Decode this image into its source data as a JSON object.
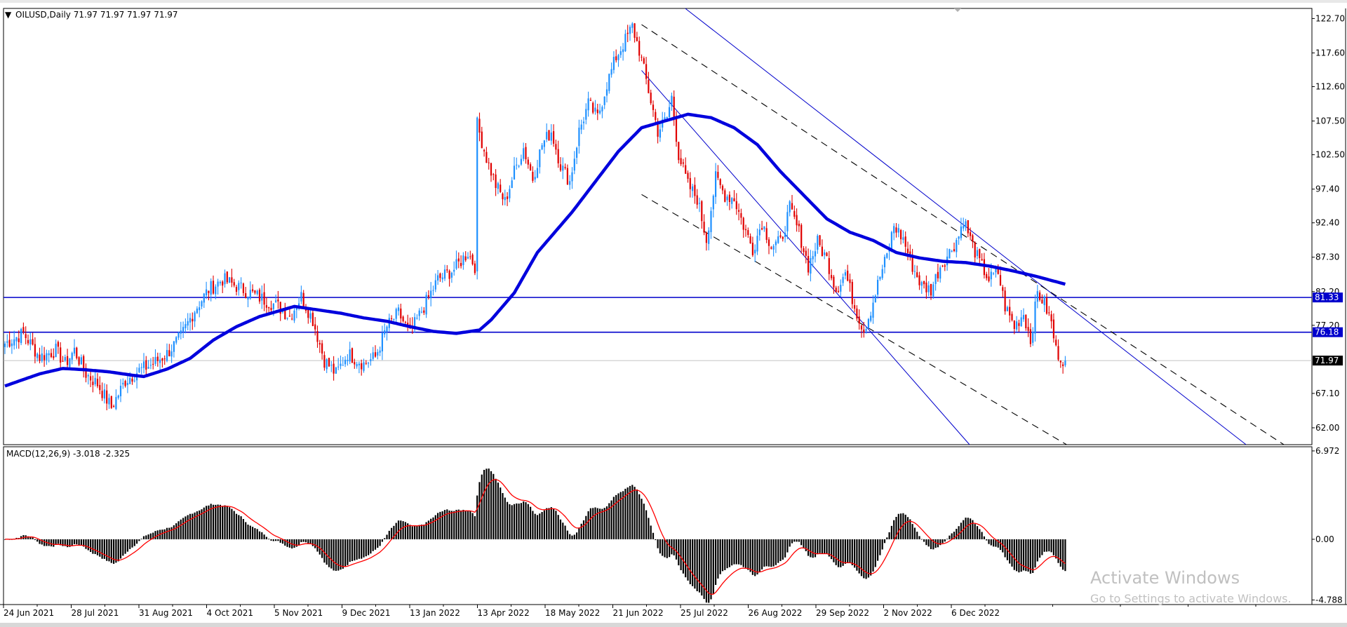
{
  "window": {
    "title": "OILUSD,Daily  71.97 71.97 71.97 71.97"
  },
  "watermark": {
    "line1": "Activate Windows",
    "line2": "Go to Settings to activate Windows."
  },
  "colors": {
    "bull": "#1e90ff",
    "bear": "#e00000",
    "ma": "#0000dd",
    "hline": "#0000cc",
    "trend": "#0000cc",
    "channel": "#000000",
    "macd_hist": "#000000",
    "macd_signal": "#ff0000",
    "current_tag": "#000000"
  },
  "chart_data": [
    {
      "type": "candlestick",
      "symbol": "OILUSD",
      "timeframe": "Daily",
      "ohlc_header": "71.97 71.97 71.97 71.97",
      "ylim": [
        59.5,
        124.2
      ],
      "y_ticks": [
        "122.70",
        "117.60",
        "112.60",
        "107.50",
        "102.50",
        "97.40",
        "92.40",
        "87.30",
        "82.20",
        "77.20",
        "67.10",
        "62.00"
      ],
      "x_date_labels": [
        "24 Jun 2021",
        "28 Jul 2021",
        "31 Aug 2021",
        "4 Oct 2021",
        "5 Nov 2021",
        "9 Dec 2021",
        "13 Jan 2022",
        "13 Apr 2022",
        "18 May 2022",
        "21 Jun 2022",
        "25 Jul 2022",
        "26 Aug 2022",
        "29 Sep 2022",
        "2 Nov 2022",
        "6 Dec 2022"
      ],
      "horizontal_lines": [
        {
          "label": "81.33",
          "value": 81.33
        },
        {
          "label": "76.18",
          "value": 76.18
        }
      ],
      "current_price": {
        "label": "71.97",
        "value": 71.97
      },
      "close_anchors": [
        [
          0,
          74.5
        ],
        [
          8,
          76.0
        ],
        [
          15,
          72.5
        ],
        [
          22,
          73.5
        ],
        [
          26,
          71.5
        ],
        [
          30,
          73.5
        ],
        [
          35,
          70.0
        ],
        [
          40,
          68.5
        ],
        [
          46,
          65.0
        ],
        [
          52,
          69.0
        ],
        [
          58,
          70.5
        ],
        [
          64,
          71.5
        ],
        [
          70,
          73.0
        ],
        [
          76,
          75.5
        ],
        [
          82,
          79.5
        ],
        [
          88,
          82.5
        ],
        [
          94,
          84.0
        ],
        [
          100,
          83.0
        ],
        [
          106,
          82.0
        ],
        [
          112,
          81.0
        ],
        [
          118,
          80.0
        ],
        [
          123,
          78.5
        ],
        [
          128,
          81.5
        ],
        [
          133,
          78.0
        ],
        [
          138,
          72.0
        ],
        [
          143,
          70.0
        ],
        [
          148,
          73.0
        ],
        [
          155,
          71.5
        ],
        [
          160,
          72.5
        ],
        [
          165,
          77.0
        ],
        [
          170,
          79.0
        ],
        [
          175,
          76.0
        ],
        [
          181,
          80.0
        ],
        [
          187,
          84.0
        ],
        [
          194,
          85.5
        ],
        [
          200,
          88.0
        ],
        [
          203,
          86.0
        ],
        [
          204,
          107.0
        ],
        [
          208,
          102.0
        ],
        [
          212,
          98.0
        ],
        [
          216,
          95.5
        ],
        [
          220,
          100.0
        ],
        [
          224,
          103.5
        ],
        [
          228,
          99.0
        ],
        [
          232,
          104.0
        ],
        [
          236,
          106.0
        ],
        [
          240,
          101.0
        ],
        [
          244,
          98.5
        ],
        [
          248,
          106.0
        ],
        [
          252,
          110.0
        ],
        [
          256,
          108.0
        ],
        [
          260,
          113.0
        ],
        [
          264,
          117.0
        ],
        [
          268,
          119.5
        ],
        [
          271,
          121.5
        ],
        [
          274,
          118.0
        ],
        [
          278,
          112.0
        ],
        [
          282,
          106.0
        ],
        [
          286,
          108.0
        ],
        [
          288,
          111.0
        ],
        [
          291,
          102.5
        ],
        [
          295,
          98.0
        ],
        [
          299,
          96.0
        ],
        [
          303,
          90.0
        ],
        [
          307,
          99.0
        ],
        [
          311,
          96.5
        ],
        [
          315,
          96.0
        ],
        [
          319,
          92.0
        ],
        [
          323,
          88.5
        ],
        [
          327,
          92.5
        ],
        [
          331,
          89.0
        ],
        [
          335,
          89.5
        ],
        [
          339,
          94.5
        ],
        [
          343,
          91.0
        ],
        [
          347,
          86.0
        ],
        [
          351,
          89.5
        ],
        [
          355,
          87.0
        ],
        [
          359,
          82.5
        ],
        [
          363,
          85.0
        ],
        [
          367,
          80.0
        ],
        [
          371,
          76.5
        ],
        [
          374,
          79.5
        ],
        [
          378,
          84.5
        ],
        [
          381,
          87.5
        ],
        [
          384,
          92.0
        ],
        [
          388,
          90.0
        ],
        [
          392,
          86.0
        ],
        [
          396,
          83.0
        ],
        [
          400,
          82.5
        ],
        [
          404,
          86.0
        ],
        [
          408,
          88.0
        ],
        [
          412,
          90.5
        ],
        [
          414,
          93.0
        ],
        [
          418,
          89.0
        ],
        [
          421,
          86.5
        ],
        [
          425,
          84.0
        ],
        [
          429,
          85.0
        ],
        [
          432,
          80.0
        ],
        [
          436,
          77.0
        ],
        [
          440,
          79.0
        ],
        [
          443,
          75.0
        ],
        [
          446,
          82.0
        ],
        [
          449,
          80.5
        ],
        [
          452,
          77.5
        ],
        [
          454,
          73.5
        ],
        [
          456,
          72.5
        ],
        [
          458,
          71.97
        ]
      ],
      "moving_average_anchors": [
        [
          0,
          68.2
        ],
        [
          15,
          70.0
        ],
        [
          25,
          70.8
        ],
        [
          35,
          70.6
        ],
        [
          45,
          70.3
        ],
        [
          55,
          69.8
        ],
        [
          60,
          69.6
        ],
        [
          70,
          70.7
        ],
        [
          80,
          72.3
        ],
        [
          90,
          75.0
        ],
        [
          100,
          77.0
        ],
        [
          110,
          78.5
        ],
        [
          120,
          79.5
        ],
        [
          125,
          80.0
        ],
        [
          135,
          79.5
        ],
        [
          145,
          79.0
        ],
        [
          155,
          78.3
        ],
        [
          165,
          77.8
        ],
        [
          175,
          77.0
        ],
        [
          185,
          76.3
        ],
        [
          195,
          76.0
        ],
        [
          205,
          76.5
        ],
        [
          210,
          78.0
        ],
        [
          220,
          82.0
        ],
        [
          230,
          88.0
        ],
        [
          245,
          94.0
        ],
        [
          255,
          98.5
        ],
        [
          265,
          103.0
        ],
        [
          275,
          106.5
        ],
        [
          285,
          107.5
        ],
        [
          295,
          108.5
        ],
        [
          305,
          108.0
        ],
        [
          315,
          106.5
        ],
        [
          325,
          104.0
        ],
        [
          335,
          100.0
        ],
        [
          345,
          96.5
        ],
        [
          355,
          93.0
        ],
        [
          365,
          91.0
        ],
        [
          375,
          89.8
        ],
        [
          385,
          88.0
        ],
        [
          395,
          87.2
        ],
        [
          405,
          86.7
        ],
        [
          415,
          86.5
        ],
        [
          425,
          86.0
        ],
        [
          435,
          85.3
        ],
        [
          445,
          84.5
        ],
        [
          458,
          83.3
        ]
      ],
      "trendlines": [
        {
          "style": "solid",
          "p1": [
            289,
            125.5
          ],
          "p2": [
            450,
            82.5
          ]
        },
        {
          "style": "solid",
          "p1": [
            275,
            115.0
          ],
          "p2": [
            372,
            77.0
          ]
        },
        {
          "style": "dashed",
          "p1": [
            275,
            121.8
          ],
          "p2": [
            450,
            82.5
          ]
        },
        {
          "style": "dashed",
          "p1": [
            275,
            96.6
          ],
          "p2": [
            372,
            77.0
          ]
        }
      ]
    },
    {
      "type": "bar",
      "title": "MACD(12,26,9) -3.018 -2.325",
      "ylim": [
        -5.15,
        7.3
      ],
      "y_ticks": [
        "6.972",
        "0.00",
        "-4.788"
      ],
      "signal_line": true
    }
  ]
}
